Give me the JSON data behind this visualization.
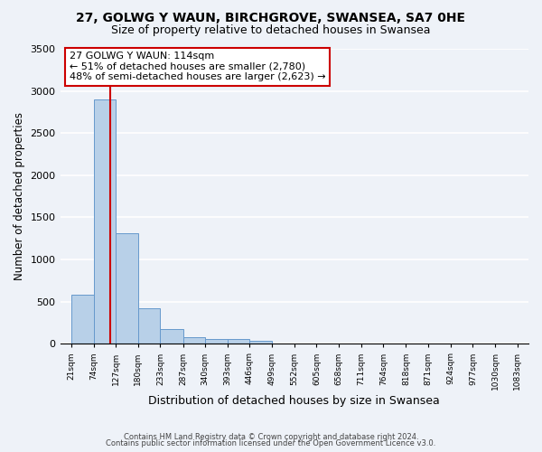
{
  "title1": "27, GOLWG Y WAUN, BIRCHGROVE, SWANSEA, SA7 0HE",
  "title2": "Size of property relative to detached houses in Swansea",
  "xlabel": "Distribution of detached houses by size in Swansea",
  "ylabel": "Number of detached properties",
  "bin_edges": [
    21,
    74,
    127,
    180,
    233,
    287,
    340,
    393,
    446,
    499,
    552,
    605,
    658,
    711,
    764,
    818,
    871,
    924,
    977,
    1030,
    1083
  ],
  "bin_labels": [
    "21sqm",
    "74sqm",
    "127sqm",
    "180sqm",
    "233sqm",
    "287sqm",
    "340sqm",
    "393sqm",
    "446sqm",
    "499sqm",
    "552sqm",
    "605sqm",
    "658sqm",
    "711sqm",
    "764sqm",
    "818sqm",
    "871sqm",
    "924sqm",
    "977sqm",
    "1030sqm",
    "1083sqm"
  ],
  "counts": [
    580,
    2900,
    1310,
    420,
    175,
    80,
    55,
    55,
    30,
    0,
    0,
    0,
    0,
    0,
    0,
    0,
    0,
    0,
    0,
    0
  ],
  "property_line_x": 114,
  "red_line_color": "#cc0000",
  "bar_color": "#b8d0e8",
  "bar_edge_color": "#6699cc",
  "annotation_line1": "27 GOLWG Y WAUN: 114sqm",
  "annotation_line2": "← 51% of detached houses are smaller (2,780)",
  "annotation_line3": "48% of semi-detached houses are larger (2,623) →",
  "annotation_box_color": "#ffffff",
  "annotation_box_edge": "#cc0000",
  "ylim": [
    0,
    3500
  ],
  "yticks": [
    0,
    500,
    1000,
    1500,
    2000,
    2500,
    3000,
    3500
  ],
  "footer1": "Contains HM Land Registry data © Crown copyright and database right 2024.",
  "footer2": "Contains public sector information licensed under the Open Government Licence v3.0.",
  "background_color": "#eef2f8",
  "grid_color": "#ffffff",
  "title1_fontsize": 10,
  "title2_fontsize": 9
}
